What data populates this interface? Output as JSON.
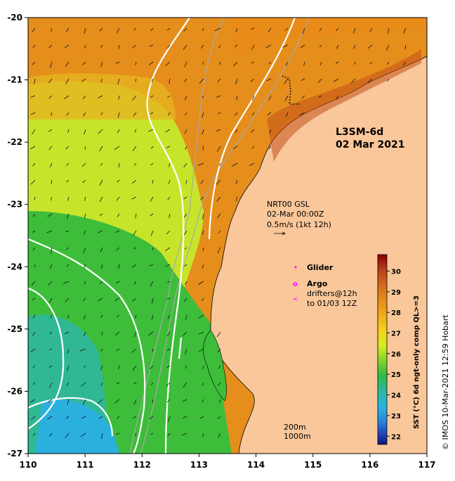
{
  "map": {
    "title_line1": "L3SM-6d",
    "title_line2": "02 Mar 2021",
    "current_line1": "NRT00 GSL",
    "current_line2": "02-Mar 00:00Z",
    "current_line3": "0.5m/s (1kt 12h)",
    "legend_glider": "Glider",
    "legend_argo": "Argo",
    "legend_drifters1": "drifters@12h",
    "legend_drifters2": "to 01/03 12Z",
    "depth_label1": "200m",
    "depth_label2": "1000m",
    "x_ticks": [
      "110",
      "111",
      "112",
      "113",
      "114",
      "115",
      "116",
      "117"
    ],
    "y_ticks": [
      "-20",
      "-21",
      "-22",
      "-23",
      "-24",
      "-25",
      "-26",
      "-27"
    ],
    "lon_range": [
      110,
      117
    ],
    "lat_range": [
      -27,
      -20
    ],
    "land_color": "#f9c79a",
    "colors": {
      "glider": "#ff00ff",
      "argo": "#ff00ff",
      "contour": "#ffffff",
      "isobath": "#a9a9a9"
    }
  },
  "colorbar": {
    "label": "SST (°C) 6d ngt-only comp QL>=3",
    "ticks": [
      "30",
      "29",
      "28",
      "27",
      "26",
      "25",
      "24",
      "23",
      "22"
    ],
    "range": [
      21.6,
      30.8
    ]
  },
  "credit": "© IMOS 10-Mar-2021 12:59 Hobart"
}
